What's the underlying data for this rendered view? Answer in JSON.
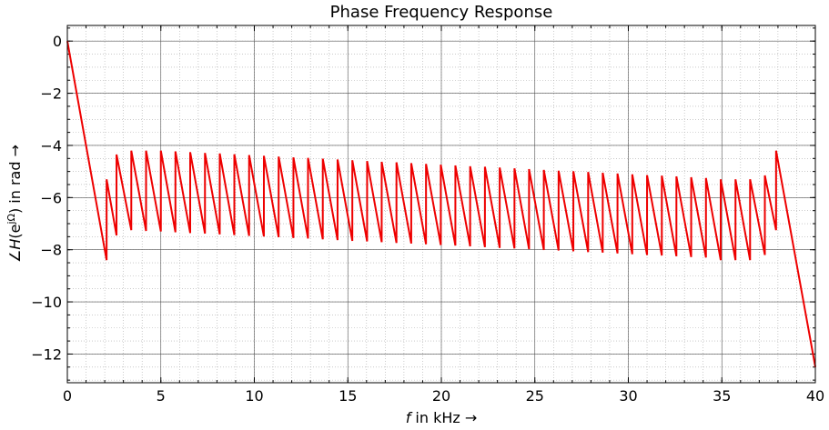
{
  "chart_data": {
    "type": "line",
    "title": "Phase Frequency Response",
    "x_label": [
      "f",
      " in kHz →"
    ],
    "y_label": [
      "∠",
      "H",
      "(e",
      "jΩ",
      ") in rad →"
    ],
    "xlim": [
      0,
      40
    ],
    "ylim": [
      -13.1,
      0.6
    ],
    "xticks": [
      0,
      5,
      10,
      15,
      20,
      25,
      30,
      35,
      40
    ],
    "yticks": [
      {
        "value": -12,
        "label": "−12"
      },
      {
        "value": -10,
        "label": "−10"
      },
      {
        "value": -8,
        "label": "−8"
      },
      {
        "value": -6,
        "label": "−6"
      },
      {
        "value": -4,
        "label": "−4"
      },
      {
        "value": -2,
        "label": "−2"
      },
      0
    ],
    "x_minor_step": 1,
    "y_minor_step": 0.5,
    "grid": true,
    "series": [
      {
        "color": "#ee0000",
        "x": [
          0,
          2.1,
          2.1,
          2.63,
          2.63,
          3.42,
          3.42,
          4.21,
          4.21,
          5.0,
          5.0,
          5.78,
          5.78,
          6.57,
          6.57,
          7.36,
          7.36,
          8.15,
          8.15,
          8.93,
          8.93,
          9.72,
          9.72,
          10.51,
          10.51,
          11.3,
          11.3,
          12.09,
          12.09,
          12.87,
          12.87,
          13.66,
          13.66,
          14.45,
          14.45,
          15.24,
          15.24,
          16.03,
          16.03,
          16.81,
          16.81,
          17.6,
          17.6,
          18.39,
          18.39,
          19.18,
          19.18,
          19.97,
          19.97,
          20.75,
          20.75,
          21.54,
          21.54,
          22.33,
          22.33,
          23.12,
          23.12,
          23.91,
          23.91,
          24.69,
          24.69,
          25.48,
          25.48,
          26.27,
          26.27,
          27.06,
          27.06,
          27.85,
          27.85,
          28.63,
          28.63,
          29.42,
          29.42,
          30.21,
          30.21,
          31.0,
          31.0,
          31.79,
          31.79,
          32.57,
          32.57,
          33.36,
          33.36,
          34.15,
          34.15,
          34.94,
          34.94,
          35.73,
          35.73,
          36.51,
          36.51,
          37.3,
          37.3,
          37.9,
          37.9,
          40
        ],
        "values": [
          0,
          -8.4,
          -5.3,
          -7.45,
          -4.35,
          -7.25,
          -4.2,
          -7.28,
          -4.2,
          -7.3,
          -4.2,
          -7.33,
          -4.23,
          -7.36,
          -4.26,
          -7.38,
          -4.29,
          -7.41,
          -4.31,
          -7.44,
          -4.34,
          -7.47,
          -4.37,
          -7.49,
          -4.4,
          -7.52,
          -4.43,
          -7.55,
          -4.46,
          -7.57,
          -4.48,
          -7.6,
          -4.51,
          -7.63,
          -4.54,
          -7.66,
          -4.57,
          -7.68,
          -4.6,
          -7.71,
          -4.63,
          -7.74,
          -4.65,
          -7.76,
          -4.68,
          -7.79,
          -4.71,
          -7.82,
          -4.74,
          -7.84,
          -4.77,
          -7.87,
          -4.8,
          -7.9,
          -4.82,
          -7.93,
          -4.85,
          -7.95,
          -4.88,
          -7.98,
          -4.91,
          -8.01,
          -4.94,
          -8.03,
          -4.97,
          -8.06,
          -4.99,
          -8.09,
          -5.02,
          -8.11,
          -5.05,
          -8.14,
          -5.08,
          -8.17,
          -5.11,
          -8.2,
          -5.14,
          -8.22,
          -5.16,
          -8.25,
          -5.19,
          -8.28,
          -5.22,
          -8.3,
          -5.25,
          -8.4,
          -5.3,
          -8.4,
          -5.3,
          -8.4,
          -5.3,
          -8.2,
          -5.15,
          -7.25,
          -4.2,
          -12.5
        ]
      }
    ]
  }
}
